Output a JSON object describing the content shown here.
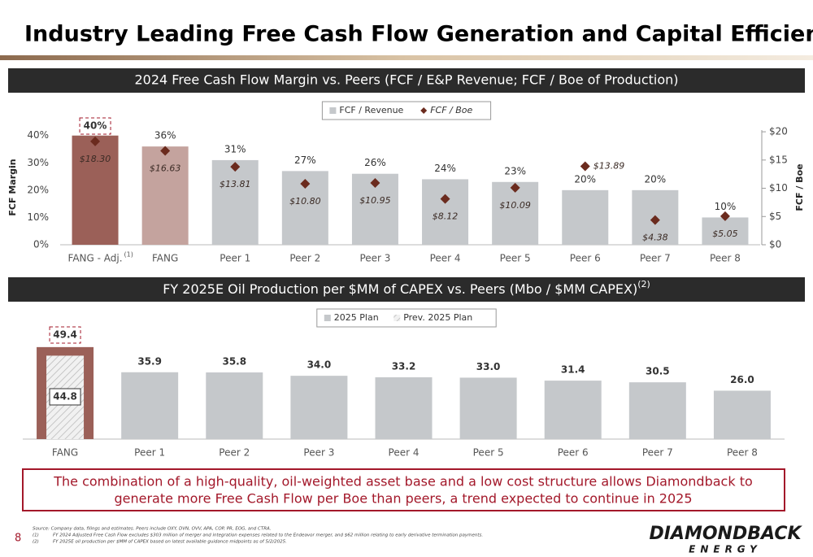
{
  "title": "Industry Leading Free Cash Flow Generation and Capital Efficiency",
  "chart_data": [
    {
      "type": "bar",
      "title": "2024 Free Cash Flow Margin vs. Peers (FCF / E&P Revenue; FCF / Boe of Production)",
      "categories": [
        "FANG - Adj.",
        "FANG",
        "Peer 1",
        "Peer 2",
        "Peer 3",
        "Peer 4",
        "Peer 5",
        "Peer 6",
        "Peer 7",
        "Peer 8"
      ],
      "first_category_note": "(1)",
      "series": [
        {
          "name": "FCF / Revenue",
          "colors": [
            "#9b6058",
            "#c4a39e",
            "#c5c8cb",
            "#c5c8cb",
            "#c5c8cb",
            "#c5c8cb",
            "#c5c8cb",
            "#c5c8cb",
            "#c5c8cb",
            "#c5c8cb"
          ],
          "values": [
            40,
            36,
            31,
            27,
            26,
            24,
            23,
            20,
            20,
            10
          ],
          "value_labels": [
            "40%",
            "36%",
            "31%",
            "27%",
            "26%",
            "24%",
            "23%",
            "20%",
            "20%",
            "10%"
          ]
        },
        {
          "name": "FCF / Boe",
          "axis": "y2",
          "style": "marker",
          "color": "#6b2b1e",
          "values": [
            18.3,
            16.63,
            13.81,
            10.8,
            10.95,
            8.12,
            10.09,
            13.89,
            4.38,
            5.05
          ],
          "value_labels": [
            "$18.30",
            "$16.63",
            "$13.81",
            "$10.80",
            "$10.95",
            "$8.12",
            "$10.09",
            "$13.89",
            "$4.38",
            "$5.05"
          ]
        }
      ],
      "ylabel": "FCF Margin",
      "y2label": "FCF / Boe",
      "ylim": [
        0,
        42
      ],
      "yticks": [
        {
          "value": 0,
          "label": "0%"
        },
        {
          "value": 10,
          "label": "10%"
        },
        {
          "value": 20,
          "label": "20%"
        },
        {
          "value": 30,
          "label": "30%"
        },
        {
          "value": 40,
          "label": "40%"
        }
      ],
      "y2lim": [
        0,
        20.3
      ],
      "y2ticks": [
        {
          "value": 0,
          "label": "$0"
        },
        {
          "value": 5,
          "label": "$5"
        },
        {
          "value": 10,
          "label": "$10"
        },
        {
          "value": 15,
          "label": "$15"
        },
        {
          "value": 20,
          "label": "$20"
        }
      ],
      "legend": "top"
    },
    {
      "type": "bar",
      "title": "FY 2025E Oil Production per $MM of CAPEX vs. Peers (Mbo / $MM CAPEX)",
      "title_note": "(2)",
      "categories": [
        "FANG",
        "Peer 1",
        "Peer 2",
        "Peer 3",
        "Peer 4",
        "Peer 5",
        "Peer 6",
        "Peer 7",
        "Peer 8"
      ],
      "series": [
        {
          "name": "2025 Plan",
          "colors": [
            "#9b6058",
            "#c5c8cb",
            "#c5c8cb",
            "#c5c8cb",
            "#c5c8cb",
            "#c5c8cb",
            "#c5c8cb",
            "#c5c8cb",
            "#c5c8cb"
          ],
          "values": [
            49.4,
            35.9,
            35.8,
            34.0,
            33.2,
            33.0,
            31.4,
            30.5,
            26.0
          ],
          "value_labels": [
            "49.4",
            "35.9",
            "35.8",
            "34.0",
            "33.2",
            "33.0",
            "31.4",
            "30.5",
            "26.0"
          ]
        },
        {
          "name": "Prev. 2025 Plan",
          "pattern": "hatch",
          "values": [
            44.8,
            null,
            null,
            null,
            null,
            null,
            null,
            null,
            null
          ]
        }
      ],
      "legend": "top"
    }
  ],
  "callout": [
    "The combination of a high-quality, oil-weighted asset base and a low cost structure allows Diamondback to",
    "generate more Free Cash Flow per Boe than peers, a trend expected to continue in 2025"
  ],
  "footnotes": {
    "source": "Source: Company data, filings and estimates. Peers include OXY, DVN, OVV, APA, COP, PR, EOG, and CTRA.",
    "notes": [
      {
        "marker": "(1)",
        "text": "FY 2024 Adjusted Free Cash Flow excludes $303 million of merger and integration expenses related to the Endeavor merger, and $62 million relating to early derivative termination payments."
      },
      {
        "marker": "(2)",
        "text": "FY 2025E oil production per $MM of CAPEX based on latest available guidance midpoints as of 5/2/2025."
      }
    ]
  },
  "page_number": "8",
  "logo": {
    "name": "DIAMONDBACK",
    "sub": "ENERGY"
  }
}
